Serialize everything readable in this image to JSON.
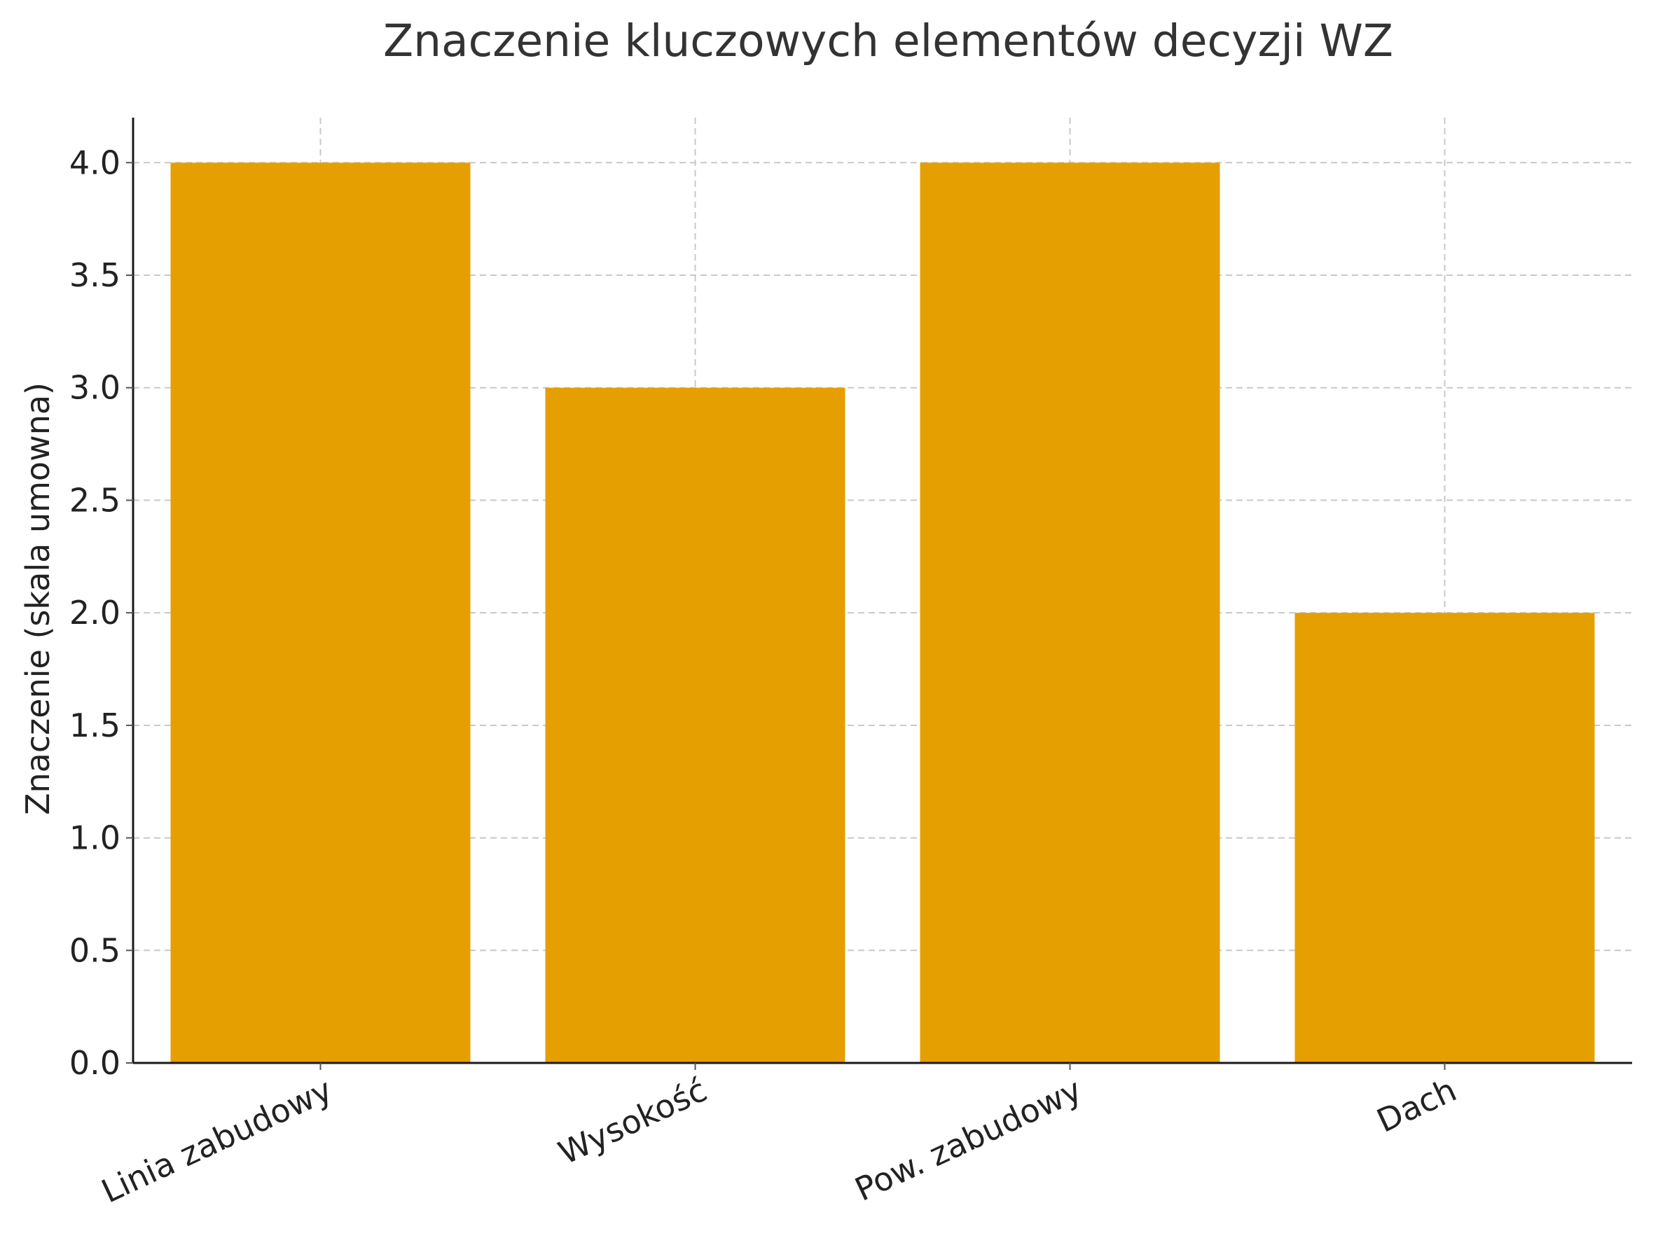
{
  "chart_data": {
    "type": "bar",
    "title": "Znaczenie kluczowych elementów decyzji WZ",
    "xlabel": "",
    "ylabel": "Znaczenie (skala umowna)",
    "categories": [
      "Linia zabudowy",
      "Wysokość",
      "Pow. zabudowy",
      "Dach"
    ],
    "values": [
      4,
      3,
      4,
      2
    ],
    "ylim": [
      0,
      4.2
    ],
    "yticks": [
      0.0,
      0.5,
      1.0,
      1.5,
      2.0,
      2.5,
      3.0,
      3.5,
      4.0
    ],
    "ytick_labels": [
      "0.0",
      "0.5",
      "1.0",
      "1.5",
      "2.0",
      "2.5",
      "3.0",
      "3.5",
      "4.0"
    ],
    "bar_color": "#E69F00",
    "grid": true,
    "xtick_rotation_deg": -25
  }
}
